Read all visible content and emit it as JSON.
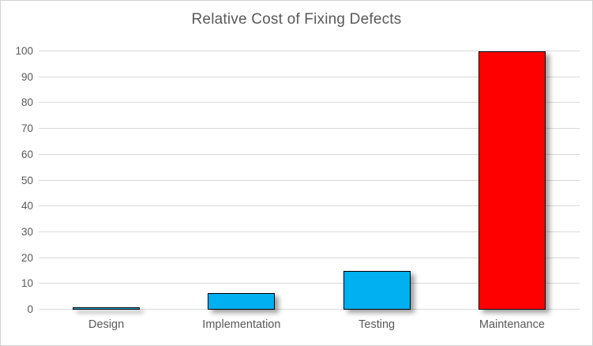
{
  "chart_data": {
    "type": "bar",
    "title": "Relative Cost of Fixing Defects",
    "categories": [
      "Design",
      "Implementation",
      "Testing",
      "Maintenance"
    ],
    "values": [
      1,
      6.5,
      15,
      100
    ],
    "bar_colors": [
      "#00B0F0",
      "#00B0F0",
      "#00B0F0",
      "#FF0000"
    ],
    "xlabel": "",
    "ylabel": "",
    "ylim": [
      0,
      100
    ],
    "ytick_interval": 10,
    "ytick_labels": [
      "0",
      "10",
      "20",
      "30",
      "40",
      "50",
      "60",
      "70",
      "80",
      "90",
      "100"
    ],
    "grid": true,
    "legend": false
  },
  "style": {
    "text_color": "#595959",
    "gridline_color": "#d9d9d9",
    "bar_border_color": "#000000",
    "frame_border_color": "#d2d2d2",
    "background_color": "#ffffff"
  }
}
